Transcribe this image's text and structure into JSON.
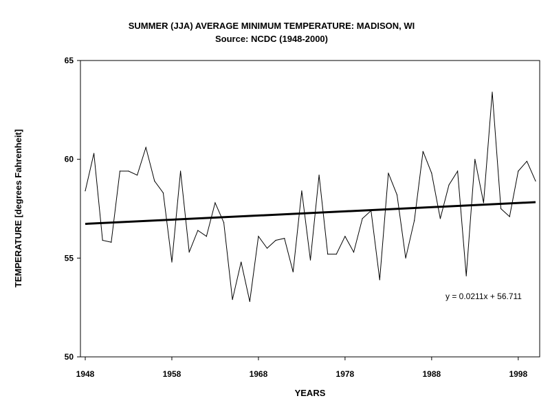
{
  "chart_data": {
    "type": "line",
    "title": "SUMMER (JJA) AVERAGE MINIMUM TEMPERATURE: MADISON, WI",
    "subtitle": "Source: NCDC (1948-2000)",
    "xlabel": "YEARS",
    "ylabel": "TEMPERATURE [degrees Fahrenheit]",
    "xlim": [
      1948,
      2000
    ],
    "ylim": [
      50,
      65
    ],
    "x_ticks": [
      "1948",
      "1958",
      "1968",
      "1978",
      "1988",
      "1998"
    ],
    "y_ticks": [
      "65",
      "60",
      "55",
      "50"
    ],
    "grid": false,
    "x": [
      1948,
      1949,
      1950,
      1951,
      1952,
      1953,
      1954,
      1955,
      1956,
      1957,
      1958,
      1959,
      1960,
      1961,
      1962,
      1963,
      1964,
      1965,
      1966,
      1967,
      1968,
      1969,
      1970,
      1971,
      1972,
      1973,
      1974,
      1975,
      1976,
      1977,
      1978,
      1979,
      1980,
      1981,
      1982,
      1983,
      1984,
      1985,
      1986,
      1987,
      1988,
      1989,
      1990,
      1991,
      1992,
      1993,
      1994,
      1995,
      1996,
      1997,
      1998,
      1999,
      2000
    ],
    "series": [
      {
        "name": "Average minimum temperature",
        "values": [
          58.4,
          60.3,
          55.9,
          55.8,
          59.4,
          59.4,
          59.2,
          60.6,
          58.9,
          58.3,
          54.8,
          59.4,
          55.3,
          56.4,
          56.1,
          57.8,
          56.8,
          52.9,
          54.8,
          52.8,
          56.1,
          55.5,
          55.9,
          56.0,
          54.3,
          58.4,
          54.9,
          59.2,
          55.2,
          55.2,
          56.1,
          55.3,
          57.0,
          57.4,
          53.9,
          59.3,
          58.2,
          55.0,
          56.9,
          60.4,
          59.3,
          57.0,
          58.7,
          59.4,
          54.1,
          60.0,
          57.8,
          63.4,
          57.5,
          57.1,
          59.4,
          59.9,
          58.9
        ]
      }
    ],
    "trendline": {
      "slope": 0.0211,
      "intercept": 56.711,
      "equation": "y = 0.0211x + 56.711"
    }
  }
}
